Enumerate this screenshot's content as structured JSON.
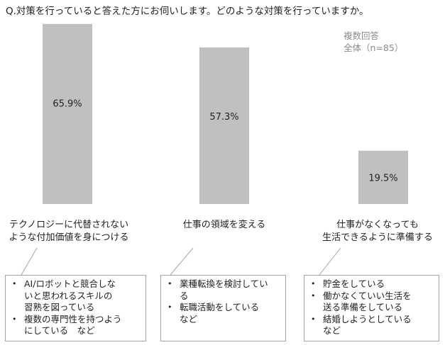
{
  "question": "Q.対策を行っていると答えた方にお伺いします。どのような対策を行っていますか。",
  "meta": {
    "note": "複数回答",
    "sample": "全体（n=85）"
  },
  "colors": {
    "bar": "#c0c0c0",
    "text": "#222222",
    "box_border": "#a6a6a6",
    "meta": "#8c8c8c"
  },
  "chart_data": {
    "type": "bar",
    "categories": [
      "テクノロジーに代替されない\nような付加価値を身につける",
      "仕事の領域を変える",
      "仕事がなくなっても\n生活できるように準備する"
    ],
    "values": [
      65.9,
      57.3,
      19.5
    ],
    "value_labels": [
      "65.9%",
      "57.3%",
      "19.5%"
    ],
    "unit": "%",
    "ylim": [
      0,
      70
    ],
    "grid": false,
    "legend": "none"
  },
  "details": [
    {
      "items": [
        "AI/ロボットと競合しな\nいと思われるスキルの\n習熟を図っている",
        "複数の専門性を持つよう\nにしている　など"
      ]
    },
    {
      "items": [
        "業種転換を検討してい\nる",
        "転職活動をしている\nなど"
      ]
    },
    {
      "items": [
        "貯金をしている",
        "働かなくていい生活を\n送る準備をしている",
        "結婚しようとしている\nなど"
      ]
    }
  ]
}
